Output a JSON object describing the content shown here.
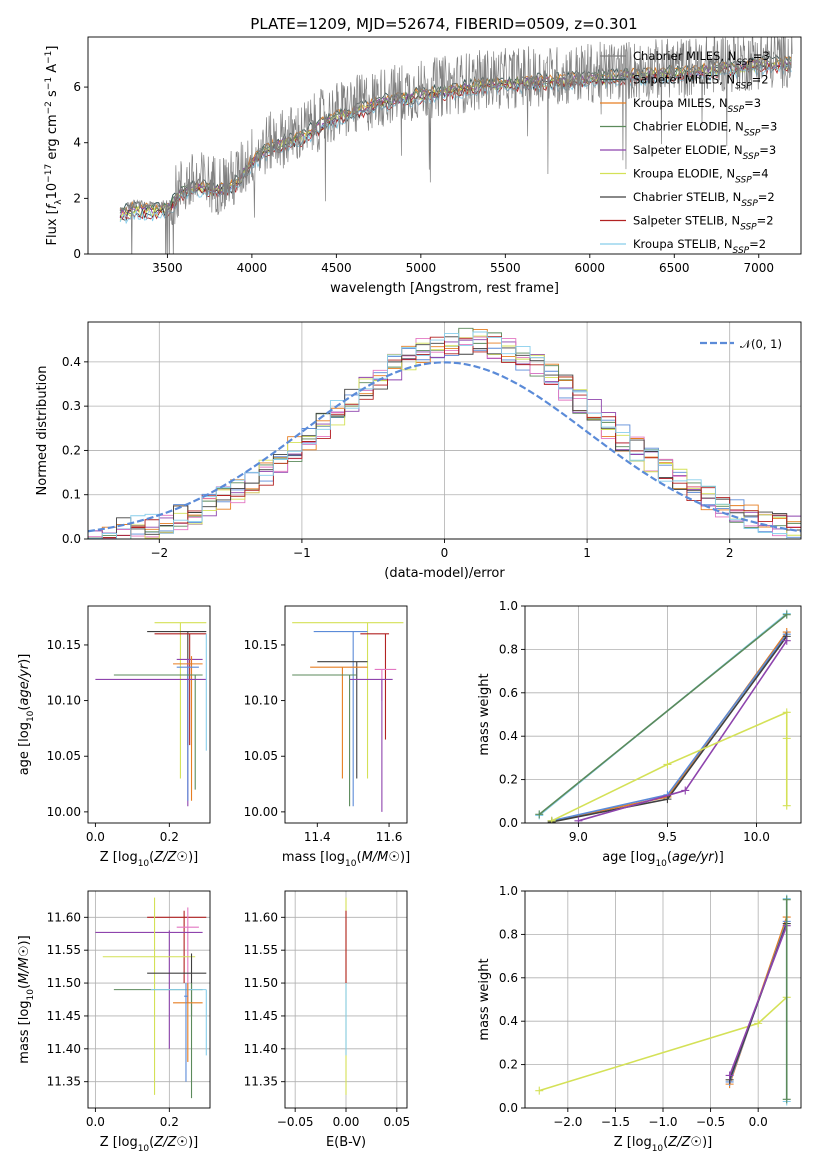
{
  "figure": {
    "title": "PLATE=1209, MJD=52674, FIBERID=0509, z=0.301"
  },
  "colors": [
    "#808080",
    "#2f4f4f",
    "#e67e22",
    "#5b8a5b",
    "#8e44ad",
    "#d4e157",
    "#404040",
    "#b22222",
    "#87ceeb"
  ],
  "chart_data": [
    {
      "type": "line",
      "id": "spectrum",
      "title": "PLATE=1209, MJD=52674, FIBERID=0509, z=0.301",
      "xlabel": "wavelength [Angstrom, rest frame]",
      "ylabel": "Flux [f_λ 10^-17 erg cm^-2 s^-1 A^-1]",
      "xlim": [
        3030,
        7250
      ],
      "ylim": [
        0,
        7.8
      ],
      "xticks": [
        3500,
        4000,
        4500,
        5000,
        5500,
        6000,
        6500,
        7000
      ],
      "yticks": [
        0,
        2,
        4,
        6
      ],
      "grid": false,
      "legend_position": "top-right",
      "series": [
        {
          "name": "Chabrier MILES, N_SSP=3",
          "color": "#808080"
        },
        {
          "name": "Salpeter MILES, N_SSP=2",
          "color": "#2f4f4f"
        },
        {
          "name": "Kroupa MILES, N_SSP=3",
          "color": "#e67e22"
        },
        {
          "name": "Chabrier ELODIE, N_SSP=3",
          "color": "#5b8a5b"
        },
        {
          "name": "Salpeter ELODIE, N_SSP=3",
          "color": "#8e44ad"
        },
        {
          "name": "Kroupa ELODIE, N_SSP=4",
          "color": "#d4e157"
        },
        {
          "name": "Chabrier STELIB, N_SSP=2",
          "color": "#404040"
        },
        {
          "name": "Salpeter STELIB, N_SSP=2",
          "color": "#b22222"
        },
        {
          "name": "Kroupa STELIB, N_SSP=2",
          "color": "#87ceeb"
        }
      ],
      "continuum": {
        "x": [
          3220,
          3300,
          3400,
          3500,
          3600,
          3700,
          3800,
          3900,
          4000,
          4100,
          4200,
          4300,
          4400,
          4500,
          4600,
          4700,
          4800,
          4900,
          5000,
          5100,
          5200,
          5300,
          5400,
          5500,
          5600,
          5700,
          5800,
          5900,
          6000,
          6100,
          6200,
          6300,
          6400,
          6500,
          6600,
          6700,
          6800,
          6900,
          7000,
          7100,
          7200
        ],
        "y": [
          1.6,
          1.8,
          1.75,
          1.8,
          2.5,
          2.6,
          2.5,
          2.7,
          3.5,
          4.0,
          4.2,
          4.4,
          4.8,
          5.1,
          5.3,
          5.5,
          5.7,
          5.8,
          5.9,
          6.0,
          6.1,
          6.2,
          6.3,
          6.3,
          6.35,
          6.4,
          6.4,
          6.45,
          6.5,
          6.55,
          6.6,
          6.6,
          6.65,
          6.7,
          6.7,
          6.8,
          6.9,
          6.9,
          7.0,
          7.0,
          7.1
        ]
      }
    },
    {
      "type": "line",
      "id": "residuals",
      "xlabel": "(data-model)/error",
      "ylabel": "Normed distribution",
      "xlim": [
        -2.5,
        2.5
      ],
      "ylim": [
        0,
        0.49
      ],
      "xticks": [
        -2,
        -1,
        0,
        1,
        2
      ],
      "yticks": [
        0.0,
        0.1,
        0.2,
        0.3,
        0.4
      ],
      "grid": true,
      "legend_position": "top-right",
      "legend_label": "𝒩(0, 1)",
      "gauss_color": "#5b8bd8",
      "bin_width": 0.1,
      "bin_start": -2.5,
      "hist_colors": [
        "#5b8bd8",
        "#e67e22",
        "#5b8a5b",
        "#8e44ad",
        "#e377c2",
        "#d4e157",
        "#404040",
        "#b22222",
        "#87ceeb"
      ]
    },
    {
      "type": "scatter",
      "id": "age_vs_Z",
      "xlabel": "Z [log10(Z/Z☉)]",
      "ylabel": "age [log10(age/yr)]",
      "xlim": [
        -0.02,
        0.31
      ],
      "ylim": [
        9.99,
        10.185
      ],
      "xticks": [
        0.0,
        0.2
      ],
      "yticks": [
        10.0,
        10.05,
        10.1,
        10.15
      ],
      "grid": false,
      "points": [
        {
          "x": 0.23,
          "y": 10.17,
          "xerr": [
            0.16,
            0.3
          ],
          "yerr": [
            10.03,
            10.17
          ],
          "color": "#d4e157"
        },
        {
          "x": 0.25,
          "y": 10.162,
          "xerr": [
            0.14,
            0.3
          ],
          "yerr": [
            10.06,
            10.162
          ],
          "color": "#404040"
        },
        {
          "x": 0.255,
          "y": 10.16,
          "xerr": [
            0.16,
            0.3
          ],
          "yerr": [
            10.06,
            10.16
          ],
          "color": "#b22222"
        },
        {
          "x": 0.25,
          "y": 10.137,
          "xerr": [
            0.22,
            0.29
          ],
          "yerr": [
            10.005,
            10.137
          ],
          "color": "#8e44ad"
        },
        {
          "x": 0.26,
          "y": 10.133,
          "xerr": [
            0.21,
            0.29
          ],
          "yerr": [
            10.01,
            10.14
          ],
          "color": "#e67e22"
        },
        {
          "x": 0.25,
          "y": 10.13,
          "xerr": [
            0.22,
            0.28
          ],
          "yerr": [
            10.01,
            10.13
          ],
          "color": "#5b8bd8"
        },
        {
          "x": 0.27,
          "y": 10.123,
          "xerr": [
            0.05,
            0.29
          ],
          "yerr": [
            10.02,
            10.123
          ],
          "color": "#5b8a5b"
        },
        {
          "x": 0.15,
          "y": 10.119,
          "xerr": [
            0.0,
            0.3
          ],
          "yerr": [
            10.119,
            10.119
          ],
          "color": "#8e44ad"
        },
        {
          "x": 0.3,
          "y": 10.16,
          "xerr": [
            0.3,
            0.3
          ],
          "yerr": [
            10.055,
            10.16
          ],
          "color": "#87ceeb"
        }
      ]
    },
    {
      "type": "scatter",
      "id": "age_vs_mass",
      "xlabel": "mass [log10(M/M☉)]",
      "ylabel": "",
      "xlim": [
        11.31,
        11.65
      ],
      "ylim": [
        9.99,
        10.185
      ],
      "xticks": [
        11.4,
        11.6
      ],
      "yticks": [
        10.0,
        10.05,
        10.1,
        10.15
      ],
      "grid": false,
      "points": [
        {
          "x": 11.54,
          "y": 10.17,
          "xerr": [
            11.33,
            11.64
          ],
          "yerr": [
            10.03,
            10.17
          ],
          "color": "#d4e157"
        },
        {
          "x": 11.5,
          "y": 10.162,
          "xerr": [
            11.39,
            11.54
          ],
          "yerr": [
            10.005,
            10.162
          ],
          "color": "#5b8bd8"
        },
        {
          "x": 11.59,
          "y": 10.16,
          "xerr": [
            11.52,
            11.6
          ],
          "yerr": [
            10.065,
            10.16
          ],
          "color": "#b22222"
        },
        {
          "x": 11.51,
          "y": 10.135,
          "xerr": [
            11.4,
            11.54
          ],
          "yerr": [
            10.03,
            10.135
          ],
          "color": "#404040"
        },
        {
          "x": 11.47,
          "y": 10.13,
          "xerr": [
            11.38,
            11.54
          ],
          "yerr": [
            10.03,
            10.13
          ],
          "color": "#e67e22"
        },
        {
          "x": 11.58,
          "y": 10.128,
          "xerr": [
            11.56,
            11.62
          ],
          "yerr": [
            10.1,
            10.128
          ],
          "color": "#e377c2"
        },
        {
          "x": 11.49,
          "y": 10.123,
          "xerr": [
            11.33,
            11.51
          ],
          "yerr": [
            10.005,
            10.123
          ],
          "color": "#5b8a5b"
        },
        {
          "x": 11.58,
          "y": 10.119,
          "xerr": [
            11.49,
            11.61
          ],
          "yerr": [
            10.0,
            10.119
          ],
          "color": "#8e44ad"
        }
      ]
    },
    {
      "type": "line",
      "id": "mass_weight_vs_age",
      "xlabel": "age [log10(age/yr)]",
      "ylabel": "mass weight",
      "xlim": [
        8.7,
        10.25
      ],
      "ylim": [
        0.0,
        1.0
      ],
      "xticks": [
        9.0,
        9.5,
        10.0
      ],
      "yticks": [
        0.0,
        0.2,
        0.4,
        0.6,
        0.8,
        1.0
      ],
      "grid": true,
      "series": [
        {
          "color": "#87ceeb",
          "x": [
            8.78,
            10.17
          ],
          "y": [
            0.035,
            0.965
          ]
        },
        {
          "color": "#5b8a5b",
          "x": [
            8.78,
            10.17
          ],
          "y": [
            0.04,
            0.96
          ]
        },
        {
          "color": "#e67e22",
          "x": [
            8.85,
            9.5,
            10.17
          ],
          "y": [
            0.01,
            0.12,
            0.88
          ]
        },
        {
          "color": "#5b8bd8",
          "x": [
            8.85,
            9.5,
            10.17
          ],
          "y": [
            0.01,
            0.13,
            0.87
          ]
        },
        {
          "color": "#404040",
          "x": [
            8.85,
            9.5,
            10.17
          ],
          "y": [
            0.005,
            0.11,
            0.86
          ]
        },
        {
          "color": "#8e44ad",
          "x": [
            9.0,
            9.6,
            10.17
          ],
          "y": [
            0.01,
            0.15,
            0.84
          ]
        },
        {
          "color": "#d4e157",
          "x": [
            8.85,
            9.5,
            10.17,
            10.17,
            10.17
          ],
          "y": [
            0.01,
            0.27,
            0.51,
            0.39,
            0.08
          ]
        }
      ]
    },
    {
      "type": "scatter",
      "id": "mass_vs_Z",
      "xlabel": "Z [log10(Z/Z☉)]",
      "ylabel": "mass [log10(M/M☉)]",
      "xlim": [
        -0.02,
        0.31
      ],
      "ylim": [
        11.31,
        11.64
      ],
      "xticks": [
        0.0,
        0.2
      ],
      "yticks": [
        11.35,
        11.4,
        11.45,
        11.5,
        11.55,
        11.6
      ],
      "grid": true,
      "points": [
        {
          "x": 0.24,
          "y": 11.6,
          "xerr": [
            0.14,
            0.3
          ],
          "yerr": [
            11.5,
            11.61
          ],
          "color": "#b22222"
        },
        {
          "x": 0.25,
          "y": 11.585,
          "xerr": [
            0.22,
            0.28
          ],
          "yerr": [
            11.47,
            11.615
          ],
          "color": "#e377c2"
        },
        {
          "x": 0.2,
          "y": 11.577,
          "xerr": [
            0.0,
            0.29
          ],
          "yerr": [
            11.4,
            11.58
          ],
          "color": "#8e44ad"
        },
        {
          "x": 0.16,
          "y": 11.54,
          "xerr": [
            0.02,
            0.27
          ],
          "yerr": [
            11.33,
            11.63
          ],
          "color": "#d4e157"
        },
        {
          "x": 0.26,
          "y": 11.515,
          "xerr": [
            0.14,
            0.3
          ],
          "yerr": [
            11.45,
            11.545
          ],
          "color": "#404040"
        },
        {
          "x": 0.26,
          "y": 11.49,
          "xerr": [
            0.05,
            0.29
          ],
          "yerr": [
            11.325,
            11.5
          ],
          "color": "#5b8a5b"
        },
        {
          "x": 0.3,
          "y": 11.49,
          "xerr": [
            0.15,
            0.3
          ],
          "yerr": [
            11.39,
            11.49
          ],
          "color": "#87ceeb"
        },
        {
          "x": 0.25,
          "y": 11.47,
          "xerr": [
            0.21,
            0.29
          ],
          "yerr": [
            11.38,
            11.5
          ],
          "color": "#e67e22"
        },
        {
          "x": 0.245,
          "y": 11.48,
          "xerr": [
            0.24,
            0.25
          ],
          "yerr": [
            11.35,
            11.5
          ],
          "color": "#5b8bd8"
        }
      ]
    },
    {
      "type": "scatter",
      "id": "mass_vs_EBV",
      "xlabel": "E(B-V)",
      "ylabel": "",
      "xlim": [
        -0.06,
        0.06
      ],
      "ylim": [
        11.31,
        11.64
      ],
      "xticks": [
        -0.05,
        0.0,
        0.05
      ],
      "yticks": [
        11.35,
        11.4,
        11.45,
        11.5,
        11.55,
        11.6
      ],
      "grid": true,
      "points": [
        {
          "x": 0.0,
          "y": 11.55,
          "xerr": [
            0.0,
            0.0
          ],
          "yerr": [
            11.33,
            11.63
          ],
          "color": "#d4e157"
        },
        {
          "x": 0.0,
          "y": 11.55,
          "xerr": [
            0.0,
            0.0
          ],
          "yerr": [
            11.5,
            11.61
          ],
          "color": "#b22222"
        },
        {
          "x": 0.0,
          "y": 11.45,
          "xerr": [
            0.0,
            0.0
          ],
          "yerr": [
            11.39,
            11.5
          ],
          "color": "#87ceeb"
        }
      ]
    },
    {
      "type": "line",
      "id": "mass_weight_vs_Z",
      "xlabel": "Z [log10(Z/Z☉)]",
      "ylabel": "mass weight",
      "xlim": [
        -2.45,
        0.45
      ],
      "ylim": [
        0.0,
        1.0
      ],
      "xticks": [
        -2.0,
        -1.5,
        -1.0,
        -0.5,
        0.0
      ],
      "yticks": [
        0.0,
        0.2,
        0.4,
        0.6,
        0.8,
        1.0
      ],
      "grid": true,
      "series": [
        {
          "color": "#d4e157",
          "x": [
            -2.3,
            0.0,
            0.3
          ],
          "y": [
            0.08,
            0.39,
            0.51
          ]
        },
        {
          "color": "#e67e22",
          "x": [
            -0.3,
            0.3
          ],
          "y": [
            0.11,
            0.88
          ]
        },
        {
          "color": "#5b8bd8",
          "x": [
            -0.3,
            0.3
          ],
          "y": [
            0.12,
            0.86
          ]
        },
        {
          "color": "#404040",
          "x": [
            -0.3,
            0.3
          ],
          "y": [
            0.13,
            0.85
          ]
        },
        {
          "color": "#8e44ad",
          "x": [
            -0.3,
            0.3
          ],
          "y": [
            0.15,
            0.84
          ]
        },
        {
          "color": "#87ceeb",
          "x": [
            0.3,
            0.3
          ],
          "y": [
            0.03,
            0.965
          ]
        },
        {
          "color": "#5b8a5b",
          "x": [
            0.3,
            0.3
          ],
          "y": [
            0.04,
            0.96
          ]
        }
      ]
    }
  ]
}
